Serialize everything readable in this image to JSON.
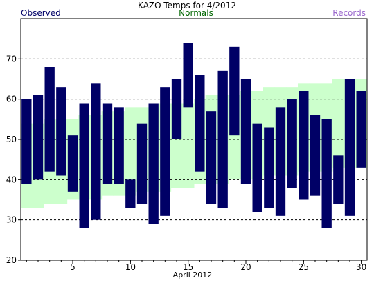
{
  "chart_data": {
    "type": "bar",
    "title": "KAZO Temps for  4/2012",
    "xlabel": "April 2012",
    "ylabel": "",
    "ylim": [
      20,
      80
    ],
    "xlim": [
      0.5,
      30.5
    ],
    "yticks": [
      20,
      30,
      40,
      50,
      60,
      70
    ],
    "xticks": [
      5,
      10,
      15,
      20,
      25,
      30
    ],
    "grid": "horizontal-dashed",
    "legend": {
      "placement": "top",
      "entries": [
        "Observed",
        "Normals",
        "Records"
      ]
    },
    "series": [
      {
        "name": "Observed",
        "kind": "range-bar",
        "days": [
          1,
          2,
          3,
          4,
          5,
          6,
          7,
          8,
          9,
          10,
          11,
          12,
          13,
          14,
          15,
          16,
          17,
          18,
          19,
          20,
          21,
          22,
          23,
          24,
          25,
          26,
          27,
          28,
          29,
          30
        ],
        "high": [
          60,
          61,
          68,
          63,
          51,
          59,
          64,
          59,
          58,
          40,
          54,
          59,
          63,
          65,
          74,
          66,
          57,
          67,
          73,
          65,
          54,
          53,
          58,
          60,
          62,
          56,
          55,
          46,
          65,
          62
        ],
        "low": [
          39,
          40,
          42,
          41,
          37,
          28,
          30,
          39,
          39,
          33,
          34,
          29,
          31,
          50,
          58,
          42,
          34,
          33,
          51,
          39,
          32,
          33,
          31,
          38,
          35,
          36,
          28,
          34,
          31,
          43
        ]
      },
      {
        "name": "Normals",
        "kind": "range-band",
        "days": [
          1,
          2,
          3,
          4,
          5,
          6,
          7,
          8,
          9,
          10,
          11,
          12,
          13,
          14,
          15,
          16,
          17,
          18,
          19,
          20,
          21,
          22,
          23,
          24,
          25,
          26,
          27,
          28,
          29,
          30
        ],
        "high": [
          54,
          54,
          55,
          55,
          55,
          56,
          56,
          57,
          57,
          58,
          58,
          58,
          59,
          59,
          59,
          60,
          61,
          61,
          61,
          62,
          62,
          63,
          63,
          63,
          64,
          64,
          64,
          65,
          65,
          65
        ],
        "low": [
          33,
          33,
          34,
          34,
          35,
          35,
          35,
          36,
          36,
          36,
          37,
          37,
          37,
          38,
          38,
          39,
          39,
          39,
          40,
          40,
          40,
          41,
          41,
          41,
          42,
          42,
          42,
          43,
          43,
          43
        ]
      },
      {
        "name": "Records",
        "kind": "range-band",
        "days": [],
        "high": [],
        "low": []
      }
    ],
    "colors": {
      "observed": "#000066",
      "normals": "#ccffcc",
      "records": "#cc99cc",
      "observed_label": "#000066",
      "normals_label": "#006600",
      "records_label": "#9966cc",
      "axis": "#000000",
      "grid": "#000000"
    }
  }
}
